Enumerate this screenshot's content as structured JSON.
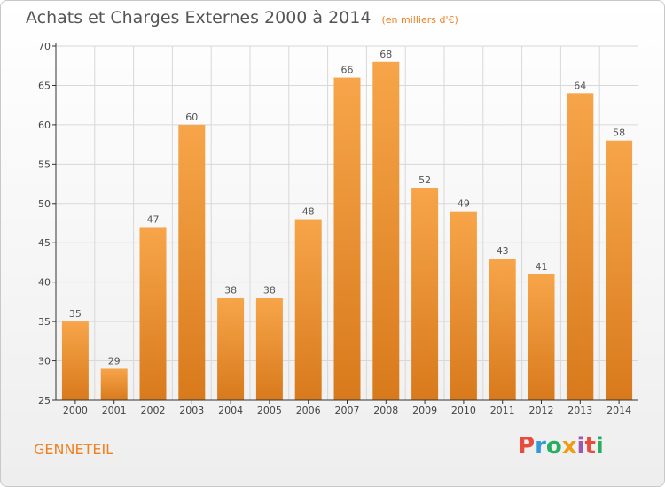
{
  "header": {
    "title": "Achats et Charges Externes 2000 à 2014",
    "subtitle": "(en milliers d'€)"
  },
  "footer": {
    "town": "GENNETEIL",
    "logo": "Proxiti",
    "logo_colors": [
      "#e74c3c",
      "#3498db",
      "#27ae60",
      "#f39c12",
      "#9b59b6",
      "#e74c3c",
      "#27ae60"
    ]
  },
  "colors": {
    "bar_top": "#f7a54a",
    "bar_bottom": "#d87a1c",
    "grid": "#d8d8d8",
    "axis": "#333333",
    "accent": "#f0801e"
  },
  "chart_data": {
    "type": "bar",
    "categories": [
      "2000",
      "2001",
      "2002",
      "2003",
      "2004",
      "2005",
      "2006",
      "2007",
      "2008",
      "2009",
      "2010",
      "2011",
      "2012",
      "2013",
      "2014"
    ],
    "values": [
      35,
      29,
      47,
      60,
      38,
      38,
      48,
      66,
      68,
      52,
      49,
      43,
      41,
      64,
      58
    ],
    "yticks": [
      25,
      30,
      35,
      40,
      45,
      50,
      55,
      60,
      65,
      70
    ],
    "ylim": [
      25,
      70
    ],
    "grid": true,
    "xlabel": "",
    "ylabel": ""
  }
}
